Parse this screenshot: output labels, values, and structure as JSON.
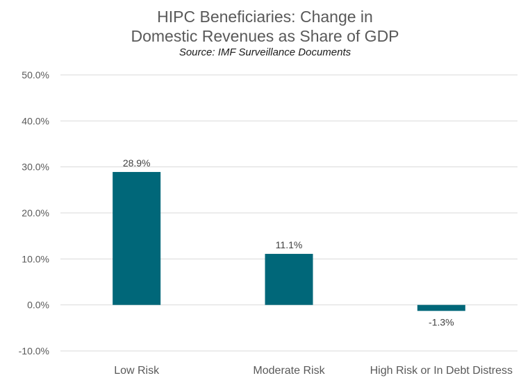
{
  "chart_data": {
    "type": "bar",
    "title_lines": [
      "HIPC Beneficiaries: Change in",
      "Domestic Revenues as Share of GDP"
    ],
    "subtitle": "Source: IMF Surveillance Documents",
    "categories": [
      "Low Risk",
      "Moderate Risk",
      "High Risk or In Debt Distress"
    ],
    "values": [
      28.9,
      11.1,
      -1.3
    ],
    "data_labels": [
      "28.9%",
      "11.1%",
      "-1.3%"
    ],
    "ylim": [
      -10,
      50
    ],
    "yticks": [
      50,
      40,
      30,
      20,
      10,
      0,
      -10
    ],
    "ytick_labels": [
      "50.0%",
      "40.0%",
      "30.0%",
      "20.0%",
      "10.0%",
      "0.0%",
      "-10.0%"
    ],
    "xlabel": "",
    "ylabel": "",
    "grid": true,
    "legend": "none",
    "colors": {
      "bar": "#006779",
      "grid": "#d9d9d9",
      "axis_text": "#595959",
      "label_text": "#404040"
    }
  }
}
